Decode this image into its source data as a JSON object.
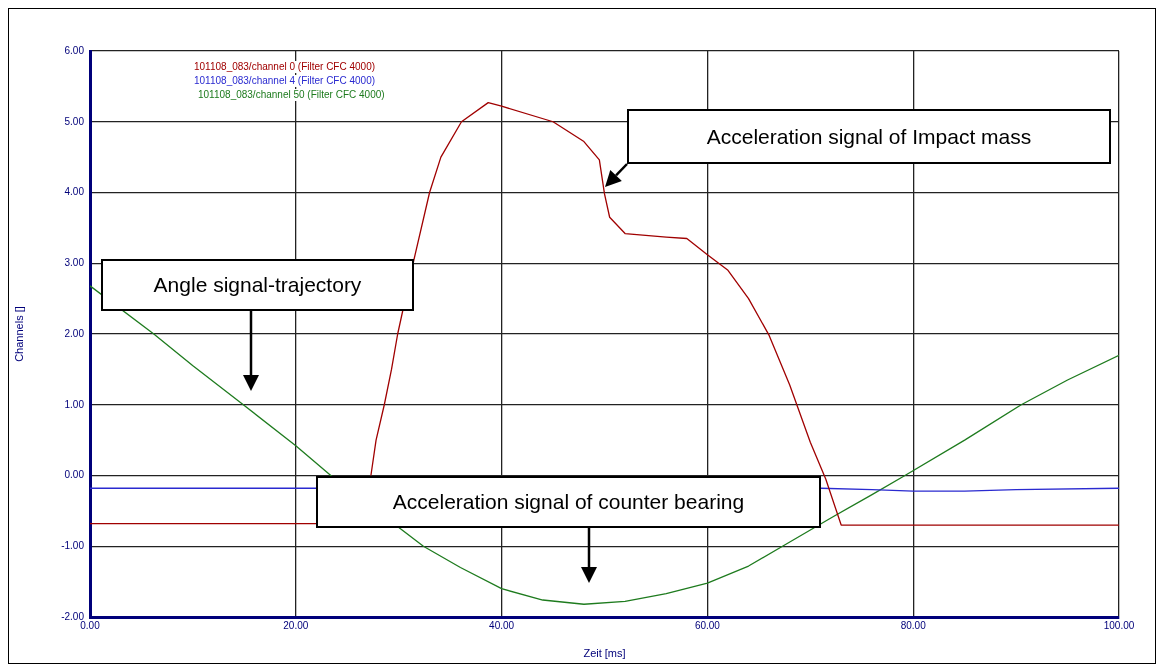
{
  "chart_data": {
    "type": "line",
    "xlabel": "Zeit [ms]",
    "ylabel": "Channels []",
    "xlim": [
      0,
      100
    ],
    "xticks": [
      {
        "value": 0,
        "label": "0.00"
      },
      {
        "value": 20,
        "label": "20.00"
      },
      {
        "value": 40,
        "label": "40.00"
      },
      {
        "value": 60,
        "label": "60.00"
      },
      {
        "value": 80,
        "label": "80.00"
      },
      {
        "value": 100,
        "label": "100.00"
      }
    ],
    "ylim": [
      -2,
      6
    ],
    "yticks": [
      {
        "value": -2,
        "label": "-2.00"
      },
      {
        "value": -1,
        "label": "-1.00"
      },
      {
        "value": 0,
        "label": "0.00"
      },
      {
        "value": 1,
        "label": "1.00"
      },
      {
        "value": 2,
        "label": "2.00"
      },
      {
        "value": 3,
        "label": "3.00"
      },
      {
        "value": 4,
        "label": "4.00"
      },
      {
        "value": 5,
        "label": "5.00"
      },
      {
        "value": 6,
        "label": "6.00"
      }
    ],
    "grid": true,
    "legend": "top left",
    "marker": "none",
    "line_style": "solid",
    "series": [
      {
        "name": "101108_083/channel 0 (Filter CFC 4000)",
        "color": "#a00000",
        "x": [
          0,
          5,
          10,
          15,
          20,
          22,
          25,
          27.3,
          27.8,
          28.6,
          29.3,
          29.9,
          31.4,
          33,
          34.1,
          36.1,
          38.7,
          40,
          45,
          48,
          49.5,
          50,
          50.5,
          52,
          56,
          58,
          60,
          62,
          64,
          66,
          68,
          70,
          71.5,
          73,
          80,
          90,
          100
        ],
        "values": [
          -0.68,
          -0.68,
          -0.68,
          -0.68,
          -0.68,
          -0.68,
          null,
          0,
          0.5,
          1,
          1.5,
          2,
          3,
          4,
          4.5,
          5,
          5.27,
          5.22,
          5,
          4.72,
          4.46,
          3.98,
          3.65,
          3.42,
          3.37,
          3.35,
          3.12,
          2.9,
          2.5,
          1.98,
          1.28,
          0.47,
          -0.05,
          -0.7,
          -0.7,
          -0.7,
          -0.7
        ]
      },
      {
        "name": "101108_083/channel 4 (Filter CFC 4000)",
        "color": "#2a2ad0",
        "x": [
          0,
          10,
          20,
          22,
          40,
          71,
          76,
          80,
          85,
          90,
          100
        ],
        "values": [
          -0.18,
          -0.18,
          -0.18,
          -0.18,
          null,
          -0.18,
          -0.2,
          -0.22,
          -0.22,
          -0.2,
          -0.18
        ]
      },
      {
        "name": "101108_083/channel 50 (Filter CFC 4000)",
        "color": "#1e7b1e",
        "x": [
          0,
          6.2,
          10,
          14.9,
          20,
          23.4,
          32.4,
          36,
          40,
          44,
          48,
          52,
          56,
          60,
          64,
          67.3,
          72,
          76,
          79.2,
          85,
          90.5,
          95,
          100
        ],
        "values": [
          2.68,
          2,
          1.55,
          1,
          0.42,
          0,
          -1,
          -1.3,
          -1.6,
          -1.76,
          -1.82,
          -1.78,
          -1.67,
          -1.52,
          -1.28,
          -1,
          -0.6,
          -0.27,
          0,
          0.5,
          1,
          1.35,
          1.7
        ]
      }
    ],
    "annotations": [
      "Acceleration signal of Impact mass",
      "Angle signal-trajectory",
      "Acceleration signal of counter bearing"
    ]
  }
}
